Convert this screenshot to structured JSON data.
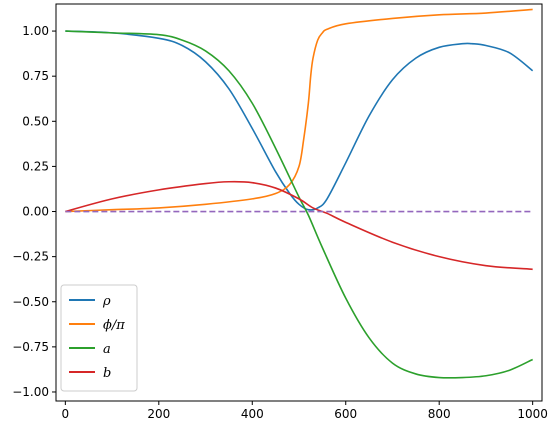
{
  "chart_data": {
    "type": "line",
    "title": "",
    "xlabel": "",
    "ylabel": "",
    "xlim": [
      -20,
      1020
    ],
    "ylim": [
      -1.05,
      1.15
    ],
    "xticks": [
      0,
      200,
      400,
      600,
      800,
      1000
    ],
    "xtick_labels": [
      "0",
      "200",
      "400",
      "600",
      "800",
      "1000"
    ],
    "yticks": [
      -1.0,
      -0.75,
      -0.5,
      -0.25,
      0.0,
      0.25,
      0.5,
      0.75,
      1.0
    ],
    "ytick_labels": [
      "−1.00",
      "−0.75",
      "−0.50",
      "−0.25",
      "0.00",
      "0.25",
      "0.50",
      "0.75",
      "1.00"
    ],
    "grid": false,
    "legend_position": "lower-left",
    "series": [
      {
        "name": "ρ",
        "color": "#1f77b4",
        "style": "solid",
        "x": [
          0,
          100,
          200,
          250,
          300,
          350,
          400,
          450,
          480,
          500,
          520,
          540,
          560,
          600,
          650,
          700,
          750,
          800,
          850,
          870,
          900,
          950,
          1000
        ],
        "y": [
          1.0,
          0.99,
          0.96,
          0.92,
          0.83,
          0.68,
          0.46,
          0.22,
          0.1,
          0.04,
          0.01,
          0.02,
          0.07,
          0.27,
          0.53,
          0.73,
          0.85,
          0.91,
          0.93,
          0.93,
          0.92,
          0.88,
          0.78
        ]
      },
      {
        "name": "ϕ/π",
        "color": "#ff7f0e",
        "style": "solid",
        "x": [
          0,
          100,
          200,
          300,
          400,
          450,
          480,
          500,
          510,
          520,
          525,
          530,
          540,
          550,
          560,
          600,
          700,
          800,
          900,
          1000
        ],
        "y": [
          0.0,
          0.01,
          0.02,
          0.04,
          0.07,
          0.1,
          0.15,
          0.25,
          0.4,
          0.6,
          0.75,
          0.85,
          0.95,
          0.99,
          1.01,
          1.04,
          1.07,
          1.09,
          1.1,
          1.12
        ]
      },
      {
        "name": "a",
        "color": "#2ca02c",
        "style": "solid",
        "x": [
          0,
          100,
          200,
          250,
          300,
          350,
          400,
          450,
          500,
          520,
          550,
          600,
          650,
          700,
          750,
          800,
          850,
          900,
          950,
          1000
        ],
        "y": [
          1.0,
          0.99,
          0.98,
          0.95,
          0.89,
          0.78,
          0.6,
          0.35,
          0.08,
          -0.02,
          -0.2,
          -0.48,
          -0.7,
          -0.84,
          -0.9,
          -0.92,
          -0.92,
          -0.91,
          -0.88,
          -0.82
        ]
      },
      {
        "name": "b",
        "color": "#d62728",
        "style": "solid",
        "x": [
          0,
          100,
          200,
          300,
          350,
          400,
          450,
          500,
          530,
          560,
          600,
          700,
          800,
          900,
          1000
        ],
        "y": [
          0.0,
          0.07,
          0.12,
          0.155,
          0.165,
          0.16,
          0.13,
          0.07,
          0.02,
          -0.01,
          -0.06,
          -0.17,
          -0.25,
          -0.3,
          -0.32
        ]
      },
      {
        "color": "#9467bd",
        "style": "dashed",
        "x": [
          0,
          1000
        ],
        "y": [
          0.0,
          0.0
        ]
      }
    ],
    "legend_entries": [
      {
        "label": "ρ",
        "color": "#1f77b4"
      },
      {
        "label": "ϕ/π",
        "color": "#ff7f0e"
      },
      {
        "label": "a",
        "color": "#2ca02c"
      },
      {
        "label": "b",
        "color": "#d62728"
      }
    ]
  }
}
